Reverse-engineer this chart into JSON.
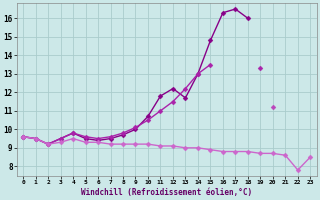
{
  "bg_color": "#cce8e8",
  "grid_color": "#aacccc",
  "xlabel": "Windchill (Refroidissement éolien,°C)",
  "xlim": [
    -0.5,
    23.5
  ],
  "ylim": [
    7.5,
    16.8
  ],
  "yticks": [
    8,
    9,
    10,
    11,
    12,
    13,
    14,
    15,
    16
  ],
  "xticks": [
    0,
    1,
    2,
    3,
    4,
    5,
    6,
    7,
    8,
    9,
    10,
    11,
    12,
    13,
    14,
    15,
    16,
    17,
    18,
    19,
    20,
    21,
    22,
    23
  ],
  "series": [
    {
      "x": [
        0,
        1,
        2,
        3,
        4,
        5,
        6,
        7,
        8,
        9,
        10,
        11,
        12,
        13,
        14,
        15,
        16,
        17,
        18,
        19,
        20,
        21,
        22,
        23
      ],
      "y": [
        9.6,
        9.5,
        9.2,
        9.5,
        9.8,
        9.5,
        9.4,
        9.5,
        9.7,
        10.0,
        10.7,
        11.8,
        12.2,
        11.7,
        13.0,
        14.8,
        16.3,
        16.5,
        16.0,
        null,
        null,
        null,
        null,
        null
      ],
      "color": "#880088",
      "lw": 1.0,
      "marker": "D",
      "ms": 2.5
    },
    {
      "x": [
        0,
        1,
        2,
        3,
        4,
        5,
        6,
        7,
        8,
        9,
        10,
        11,
        12,
        13,
        14,
        15,
        16,
        17,
        18,
        19,
        20,
        21,
        22,
        23
      ],
      "y": [
        9.6,
        9.5,
        9.2,
        9.5,
        9.8,
        9.6,
        9.5,
        9.6,
        9.8,
        10.1,
        10.5,
        11.0,
        11.5,
        12.2,
        13.0,
        13.5,
        null,
        null,
        null,
        13.3,
        null,
        null,
        null,
        null
      ],
      "color": "#aa22aa",
      "lw": 1.0,
      "marker": "D",
      "ms": 2.5
    },
    {
      "x": [
        0,
        1,
        2,
        3,
        4,
        5,
        6,
        7,
        8,
        9,
        10,
        11,
        12,
        13,
        14,
        15,
        16,
        17,
        18,
        19,
        20,
        21,
        22,
        23
      ],
      "y": [
        9.6,
        null,
        null,
        null,
        null,
        null,
        null,
        null,
        null,
        null,
        null,
        null,
        null,
        null,
        null,
        null,
        null,
        null,
        null,
        null,
        11.2,
        null,
        null,
        null
      ],
      "color": "#bb44bb",
      "lw": 1.0,
      "marker": "D",
      "ms": 2.5
    },
    {
      "x": [
        0,
        1,
        2,
        3,
        4,
        5,
        6,
        7,
        8,
        9,
        10,
        11,
        12,
        13,
        14,
        15,
        16,
        17,
        18,
        19,
        20,
        21,
        22,
        23
      ],
      "y": [
        9.6,
        9.5,
        9.2,
        9.3,
        9.5,
        9.3,
        9.3,
        9.2,
        9.2,
        9.2,
        9.2,
        9.1,
        9.1,
        9.0,
        9.0,
        8.9,
        8.8,
        8.8,
        8.8,
        8.7,
        8.7,
        8.6,
        7.8,
        8.5
      ],
      "color": "#cc66cc",
      "lw": 1.0,
      "marker": "D",
      "ms": 2.5
    }
  ]
}
